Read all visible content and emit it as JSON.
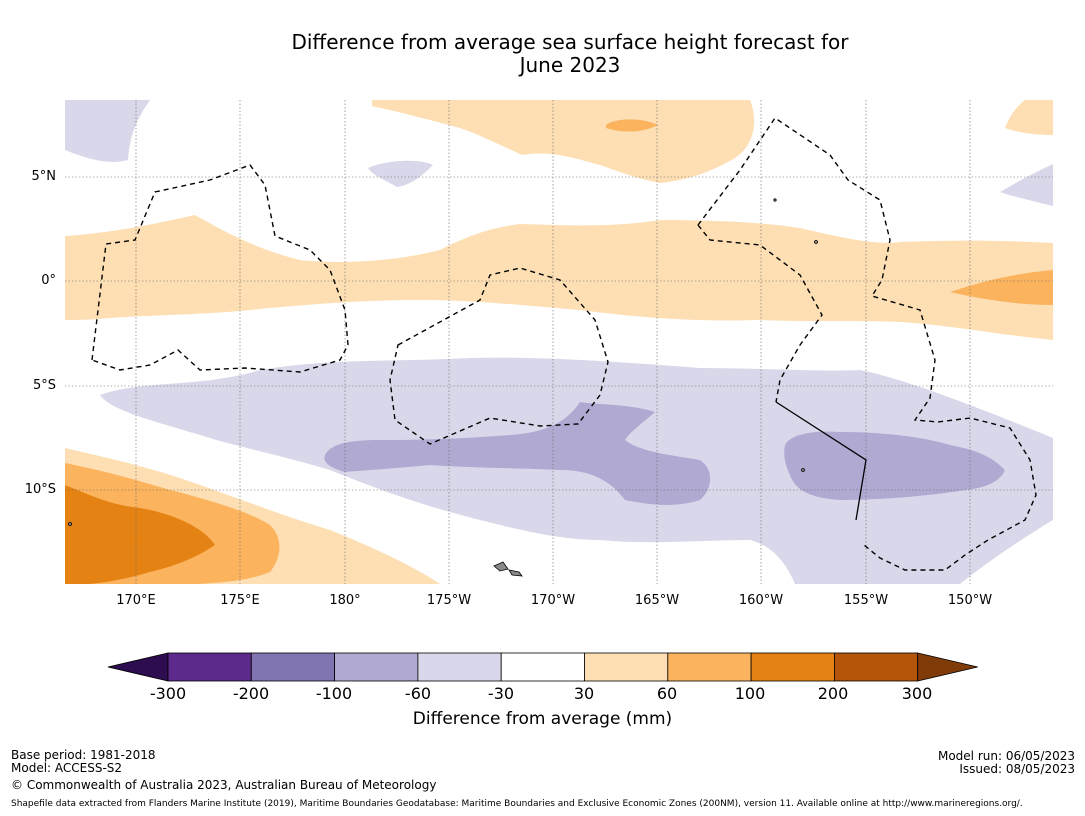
{
  "title": {
    "line1": "Difference from average sea surface height forecast for",
    "line2": "June 2023"
  },
  "map": {
    "lon_labels": [
      "170°E",
      "175°E",
      "180°",
      "175°W",
      "170°W",
      "165°W",
      "160°W",
      "155°W",
      "150°W"
    ],
    "lat_labels": [
      "5°N",
      "0°",
      "5°S",
      "10°S"
    ]
  },
  "colorbar": {
    "colors": [
      "#2d0c4f",
      "#5b2a8b",
      "#8273b1",
      "#b0a9d2",
      "#d8d8ea",
      "#ffffff",
      "#fddfb3",
      "#fbb35e",
      "#e48314",
      "#b3560b",
      "#7f3b08"
    ],
    "ticks": [
      "-300",
      "-200",
      "-100",
      "-60",
      "-30",
      "30",
      "60",
      "100",
      "200",
      "300"
    ],
    "label": "Difference from average (mm)"
  },
  "footer": {
    "base_period": "Base period: 1981-2018",
    "model": "Model: ACCESS-S2",
    "model_run": "Model run: 06/05/2023",
    "issued": "Issued: 08/05/2023",
    "copyright": "© Commonwealth of Australia 2023, Australian Bureau of Meteorology",
    "shapefile": "Shapefile data extracted from Flanders Marine Institute (2019), Maritime Boundaries Geodatabase: Maritime Boundaries and Exclusive Economic Zones (200NM), version 11. Available online at http://www.marineregions.org/."
  }
}
